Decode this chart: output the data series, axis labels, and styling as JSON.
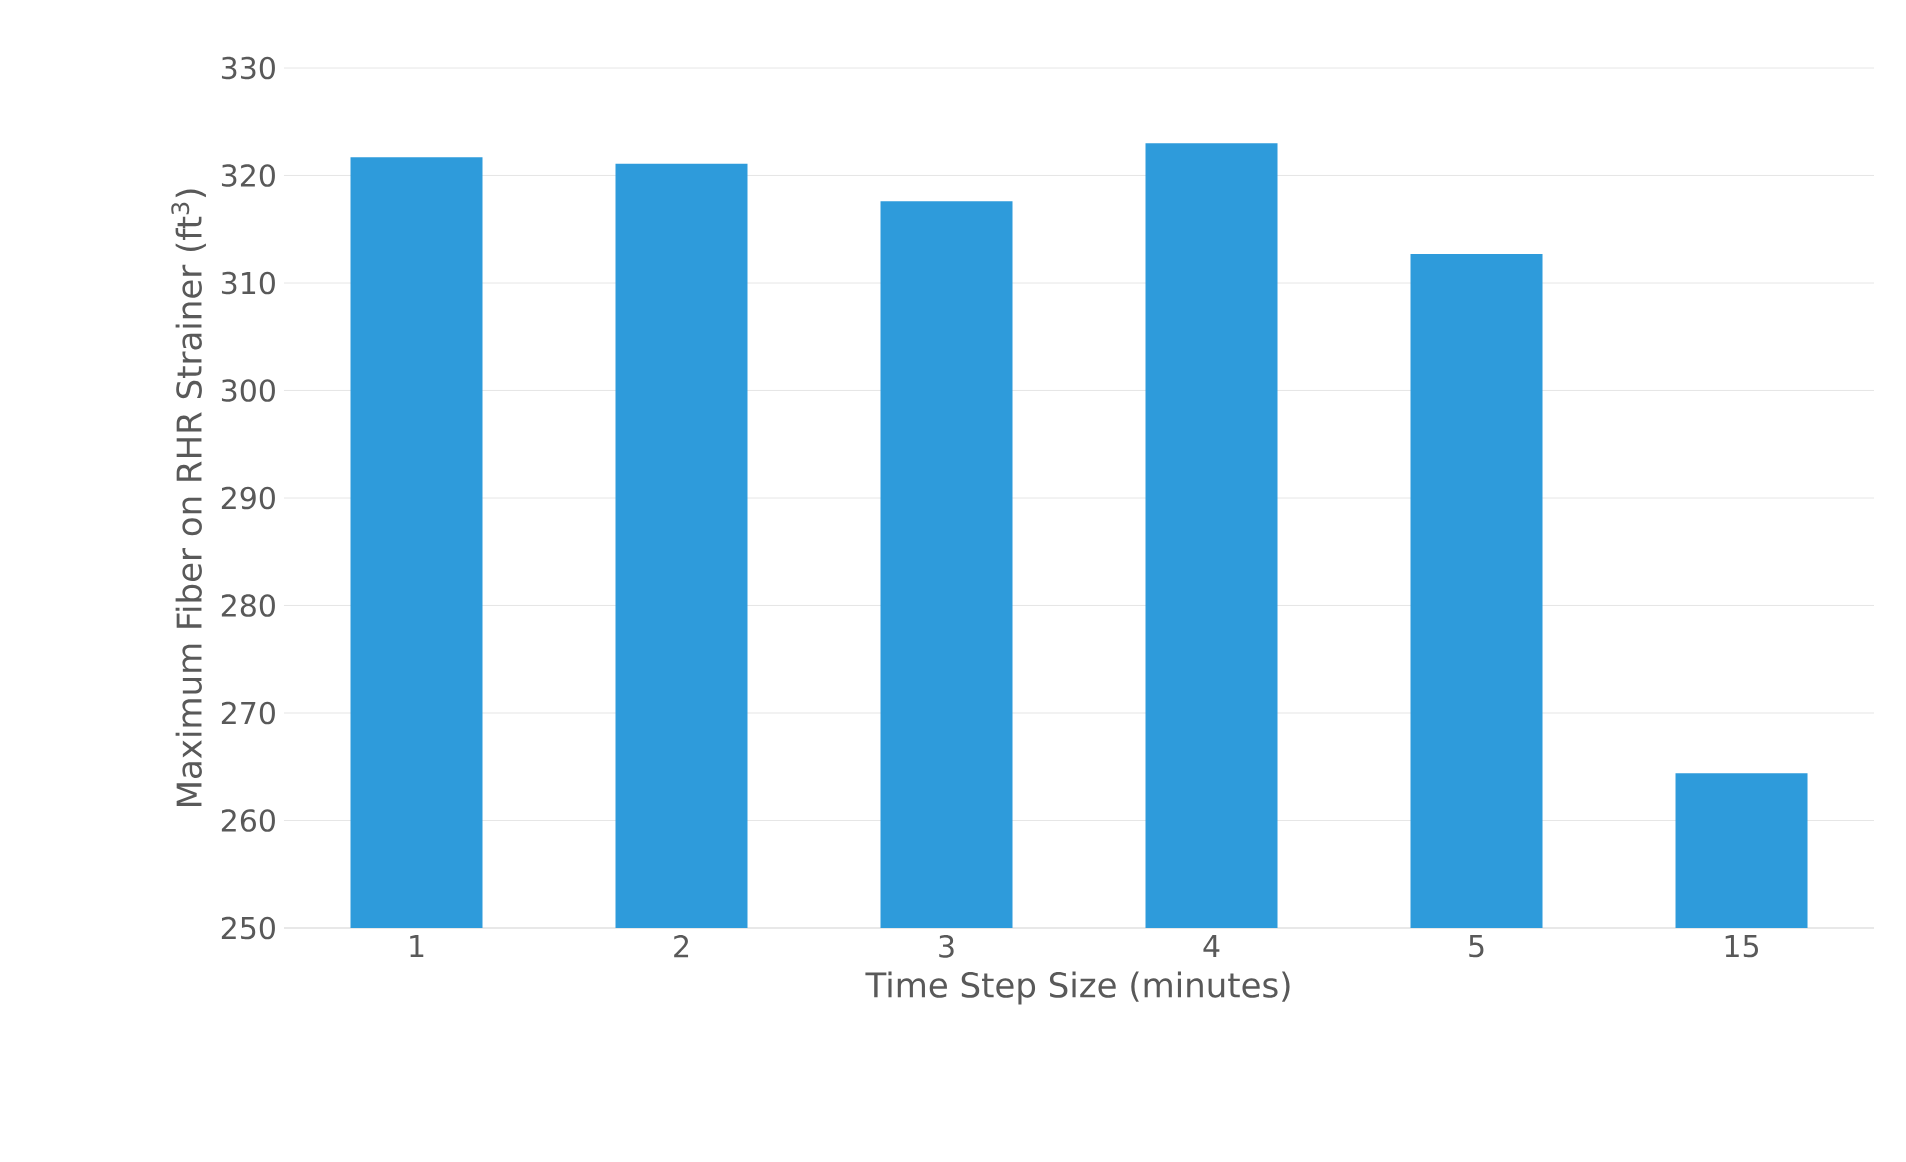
{
  "chart_data": {
    "type": "bar",
    "xlabel": "Time Step Size (minutes)",
    "ylabel": "Maximum Fiber on RHR Strainer (ft$^{3}$)",
    "categories": [
      "1",
      "2",
      "3",
      "4",
      "5",
      "15"
    ],
    "values": [
      321.7,
      321.1,
      317.6,
      323.0,
      312.7,
      264.4
    ],
    "color": "#2e9bdb",
    "ylim": [
      250,
      330
    ],
    "yticks": [
      250,
      260,
      270,
      280,
      290,
      300,
      310,
      320,
      330
    ],
    "grid": "y"
  }
}
